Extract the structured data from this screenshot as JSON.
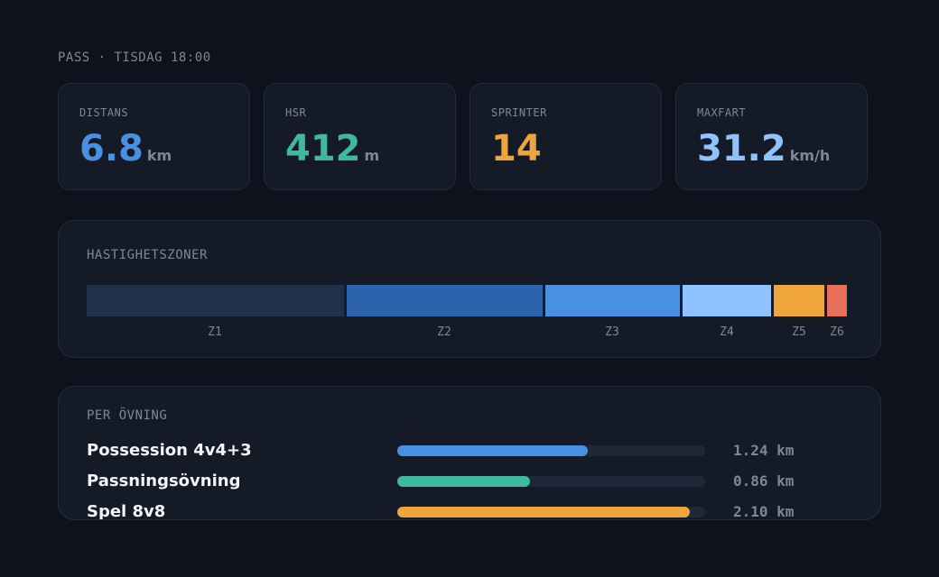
{
  "session": {
    "label": "PASS · TISDAG 18:00"
  },
  "kpis": [
    {
      "label": "DISTANS",
      "value": "6.8",
      "unit": "km",
      "color": "#4a90e2"
    },
    {
      "label": "HSR",
      "value": "412",
      "unit": "m",
      "color": "#3fb8a0"
    },
    {
      "label": "SPRINTER",
      "value": "14",
      "unit": "",
      "color": "#f0a43c"
    },
    {
      "label": "MAXFART",
      "value": "31.2",
      "unit": "km/h",
      "color": "#8fc3ff"
    }
  ],
  "zones": {
    "title": "HASTIGHETSZONER",
    "items": [
      {
        "label": "Z1",
        "color": "#213149"
      },
      {
        "label": "Z2",
        "color": "#2b63ad"
      },
      {
        "label": "Z3",
        "color": "#4a90e2"
      },
      {
        "label": "Z4",
        "color": "#8fc3ff"
      },
      {
        "label": "Z5",
        "color": "#f0a43c"
      },
      {
        "label": "Z6",
        "color": "#e8705a"
      }
    ]
  },
  "drills": {
    "title": "PER ÖVNING",
    "items": [
      {
        "name": "Possession 4v4+3",
        "value": "1.24 km",
        "fraction": 0.62,
        "color": "#4a90e2"
      },
      {
        "name": "Passningsövning",
        "value": "0.86 km",
        "fraction": 0.43,
        "color": "#3fb8a0"
      },
      {
        "name": "Spel 8v8",
        "value": "2.10 km",
        "fraction": 0.95,
        "color": "#f0a43c"
      }
    ]
  }
}
